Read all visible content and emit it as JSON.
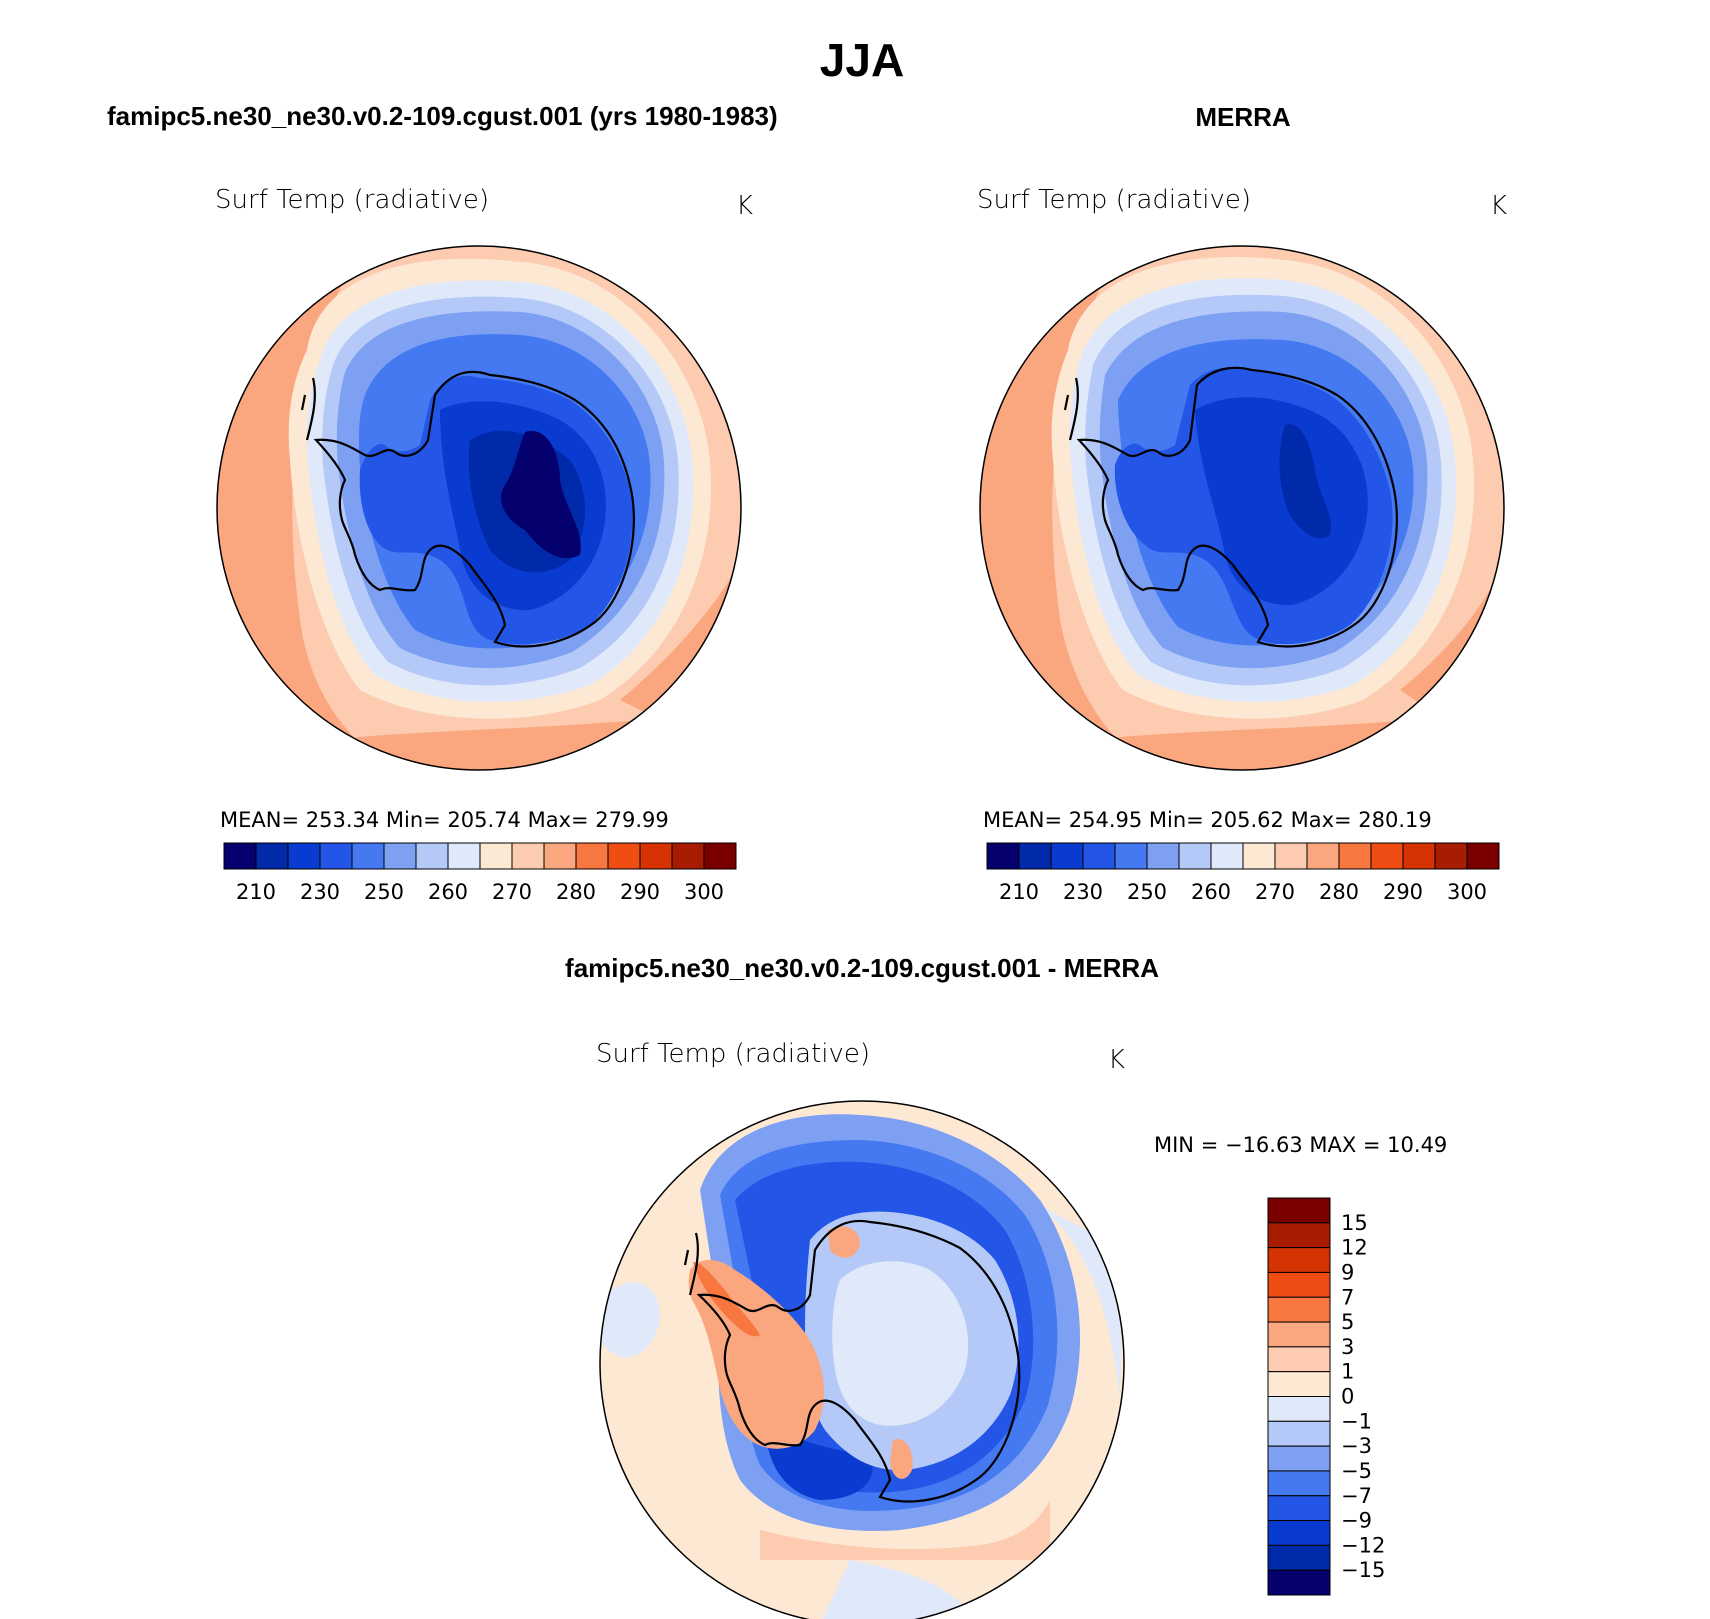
{
  "title": "JJA",
  "colors": {
    "seq_palette": [
      "#04006d",
      "#002aa9",
      "#0a3bd0",
      "#2356e6",
      "#4579f2",
      "#7ea0f3",
      "#b4c9f8",
      "#dfe9fa",
      "#fde8d4",
      "#fccbb0",
      "#faa780",
      "#f8763f",
      "#ef4d14",
      "#d63305",
      "#a81c02",
      "#7a0000"
    ],
    "diff_palette": [
      "#04006d",
      "#002aa9",
      "#0a3bd0",
      "#2356e6",
      "#4579f2",
      "#7ea0f3",
      "#b4c9f8",
      "#dfe9fa",
      "#fde8d4",
      "#fccbb0",
      "#faa780",
      "#f8763f",
      "#ef4d14",
      "#d63305",
      "#a81c02",
      "#7a0000"
    ],
    "coastline": "#000000"
  },
  "panels": {
    "model": {
      "title": "famipc5.ne30_ne30.v0.2-109.cgust.001 (yrs 1980-1983)",
      "variable": "Surf Temp (radiative)",
      "units": "K",
      "stats": "MEAN= 253.34    Min= 205.74    Max= 279.99"
    },
    "obs": {
      "title": "MERRA",
      "variable": "Surf Temp (radiative)",
      "units": "K",
      "stats": "MEAN= 254.95    Min= 205.62    Max= 280.19"
    },
    "diff": {
      "title": "famipc5.ne30_ne30.v0.2-109.cgust.001 - MERRA",
      "variable": "Surf Temp (radiative)",
      "units": "K",
      "stats": "MIN = −16.63 MAX =   10.49"
    }
  },
  "chart_data": [
    {
      "type": "heatmap",
      "projection": "south polar stereographic",
      "title": "famipc5.ne30_ne30.v0.2-109.cgust.001 (yrs 1980-1983)",
      "variable": "Surf Temp (radiative)",
      "units": "K",
      "mean": 253.34,
      "min": 205.74,
      "max": 279.99,
      "colorbar_labels": [
        "210",
        "230",
        "250",
        "260",
        "270",
        "280",
        "290",
        "300"
      ],
      "contour_levels": [
        210,
        220,
        230,
        240,
        250,
        255,
        260,
        265,
        270,
        275,
        280,
        285,
        290,
        295,
        300
      ]
    },
    {
      "type": "heatmap",
      "projection": "south polar stereographic",
      "title": "MERRA",
      "variable": "Surf Temp (radiative)",
      "units": "K",
      "mean": 254.95,
      "min": 205.62,
      "max": 280.19,
      "colorbar_labels": [
        "210",
        "230",
        "250",
        "260",
        "270",
        "280",
        "290",
        "300"
      ],
      "contour_levels": [
        210,
        220,
        230,
        240,
        250,
        255,
        260,
        265,
        270,
        275,
        280,
        285,
        290,
        295,
        300
      ]
    },
    {
      "type": "heatmap",
      "projection": "south polar stereographic",
      "title": "famipc5.ne30_ne30.v0.2-109.cgust.001 - MERRA",
      "variable": "Surf Temp (radiative)",
      "units": "K",
      "min": -16.63,
      "max": 10.49,
      "colorbar_labels": [
        "15",
        "12",
        "9",
        "7",
        "5",
        "3",
        "1",
        "0",
        "−1",
        "−3",
        "−5",
        "−7",
        "−9",
        "−12",
        "−15"
      ],
      "contour_levels": [
        -15,
        -12,
        -9,
        -7,
        -5,
        -3,
        -1,
        0,
        1,
        3,
        5,
        7,
        9,
        12,
        15
      ]
    }
  ]
}
